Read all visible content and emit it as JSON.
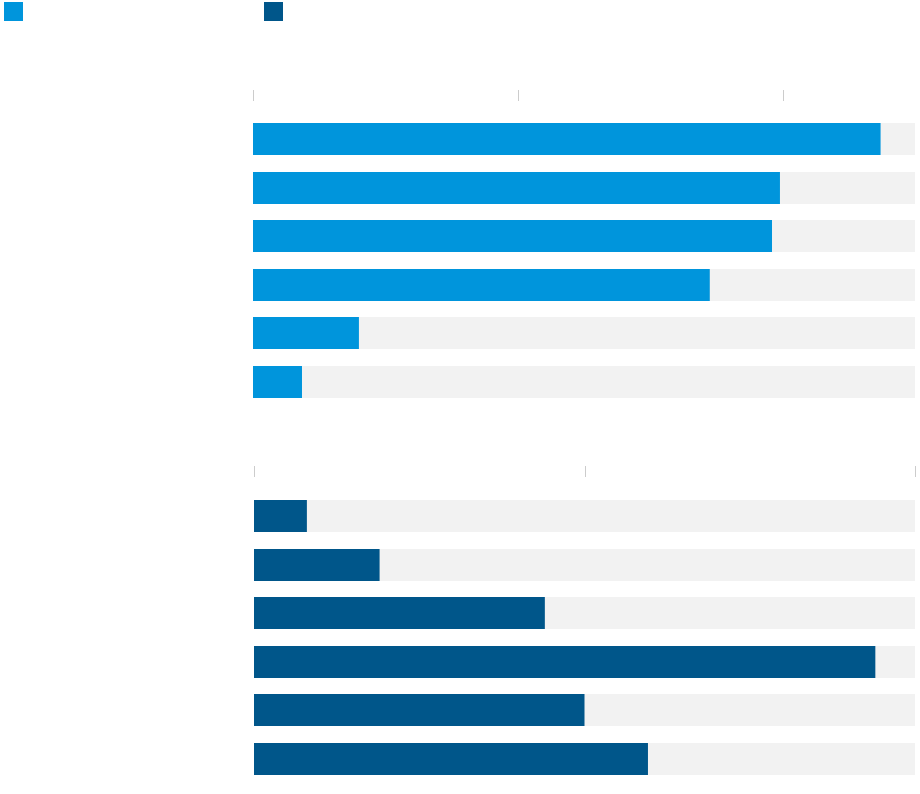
{
  "colors": {
    "series_a": "#0095dc",
    "series_b": "#00568a",
    "track": "#f2f2f2",
    "tick": "#cccccc"
  },
  "legend": {
    "items": [
      {
        "label": "",
        "color": "#0095dc"
      },
      {
        "label": "",
        "color": "#00568a"
      }
    ]
  },
  "chart_data": [
    {
      "type": "bar",
      "orientation": "horizontal",
      "series": [
        {
          "name": "",
          "color": "#0095dc",
          "values": [
            0.948,
            0.796,
            0.784,
            0.69,
            0.16,
            0.074
          ]
        }
      ],
      "xlim": [
        0,
        1
      ],
      "ticks": [
        0,
        0.4,
        0.8
      ],
      "grid": false
    },
    {
      "type": "bar",
      "orientation": "horizontal",
      "series": [
        {
          "name": "",
          "color": "#00568a",
          "values": [
            0.08,
            0.19,
            0.44,
            0.94,
            0.5,
            0.596
          ]
        }
      ],
      "xlim": [
        0,
        1
      ],
      "ticks": [
        0,
        0.5,
        1.0
      ],
      "grid": false
    }
  ]
}
